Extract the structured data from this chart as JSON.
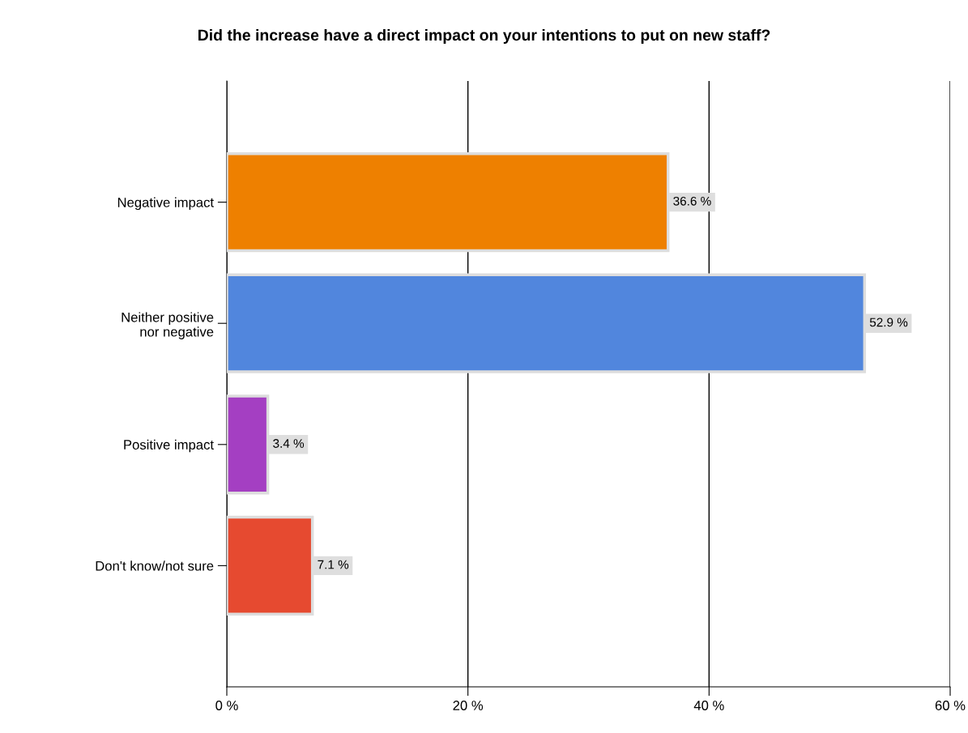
{
  "chart_data": {
    "type": "bar",
    "orientation": "horizontal",
    "title": "Did the increase have a direct impact on your intentions to put on new staff?",
    "categories": [
      "Negative impact",
      "Neither positive\nnor negative",
      "Positive impact",
      "Don't know/not sure"
    ],
    "values": [
      36.6,
      52.9,
      3.4,
      7.1
    ],
    "colors": [
      "#ee8000",
      "#5186dd",
      "#a43fc2",
      "#e64a30"
    ],
    "value_labels": [
      "36.6 %",
      "52.9 %",
      "3.4 %",
      "7.1 %"
    ],
    "xlim": [
      0,
      60
    ],
    "xticks": [
      {
        "value": 0,
        "label": "0 %"
      },
      {
        "value": 20,
        "label": "20 %"
      },
      {
        "value": 40,
        "label": "40 %"
      },
      {
        "value": 60,
        "label": "60 %"
      }
    ],
    "grid": "x"
  }
}
